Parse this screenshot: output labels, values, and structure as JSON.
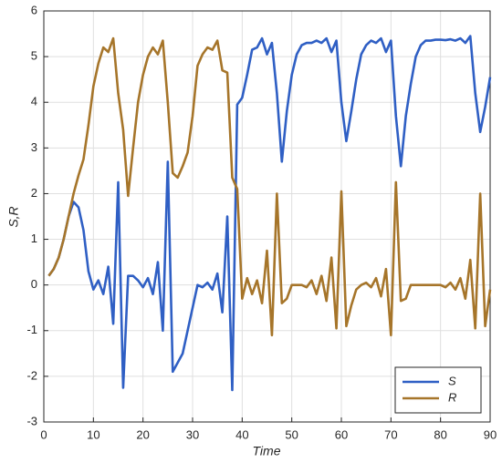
{
  "chart_data": {
    "type": "line",
    "xlabel": "Time",
    "ylabel": "S,R",
    "x": [
      1,
      2,
      3,
      4,
      5,
      6,
      7,
      8,
      9,
      10,
      11,
      12,
      13,
      14,
      15,
      16,
      17,
      18,
      19,
      20,
      21,
      22,
      23,
      24,
      25,
      26,
      27,
      28,
      29,
      30,
      31,
      32,
      33,
      34,
      35,
      36,
      37,
      38,
      39,
      40,
      41,
      42,
      43,
      44,
      45,
      46,
      47,
      48,
      49,
      50,
      51,
      52,
      53,
      54,
      55,
      56,
      57,
      58,
      59,
      60,
      61,
      62,
      63,
      64,
      65,
      66,
      67,
      68,
      69,
      70,
      71,
      72,
      73,
      74,
      75,
      76,
      77,
      78,
      79,
      80,
      81,
      82,
      83,
      84,
      85,
      86,
      87,
      88,
      89,
      90
    ],
    "series": [
      {
        "name": "S",
        "color": "#2f5fc4",
        "values": [
          0.2,
          0.35,
          0.6,
          1.0,
          1.5,
          1.82,
          1.7,
          1.2,
          0.3,
          -0.1,
          0.1,
          -0.2,
          0.4,
          -0.85,
          2.25,
          -2.25,
          0.2,
          0.2,
          0.1,
          -0.05,
          0.15,
          -0.2,
          0.5,
          -1.0,
          2.7,
          -1.9,
          -1.7,
          -1.5,
          -1.0,
          -0.5,
          0.0,
          -0.05,
          0.05,
          -0.1,
          0.25,
          -0.6,
          1.5,
          -2.3,
          3.95,
          4.1,
          4.6,
          5.15,
          5.2,
          5.4,
          5.05,
          5.3,
          4.2,
          2.7,
          3.8,
          4.6,
          5.05,
          5.25,
          5.3,
          5.3,
          5.35,
          5.3,
          5.4,
          5.1,
          5.35,
          4.0,
          3.15,
          3.8,
          4.5,
          5.05,
          5.25,
          5.35,
          5.3,
          5.4,
          5.1,
          5.35,
          3.7,
          2.6,
          3.7,
          4.4,
          5.0,
          5.25,
          5.35,
          5.35,
          5.37,
          5.37,
          5.36,
          5.38,
          5.35,
          5.4,
          5.3,
          5.45,
          4.2,
          3.35,
          3.9,
          4.55
        ]
      },
      {
        "name": "R",
        "color": "#a6752a",
        "values": [
          0.2,
          0.35,
          0.6,
          1.0,
          1.5,
          2.0,
          2.4,
          2.75,
          3.5,
          4.35,
          4.85,
          5.2,
          5.1,
          5.4,
          4.2,
          3.4,
          1.95,
          3.0,
          4.0,
          4.6,
          5.0,
          5.2,
          5.05,
          5.35,
          4.0,
          2.45,
          2.35,
          2.6,
          2.9,
          3.7,
          4.8,
          5.05,
          5.2,
          5.15,
          5.35,
          4.7,
          4.65,
          2.35,
          2.1,
          -0.3,
          0.15,
          -0.2,
          0.1,
          -0.4,
          0.75,
          -1.1,
          2.0,
          -0.4,
          -0.3,
          0.0,
          0.0,
          0.0,
          -0.05,
          0.1,
          -0.2,
          0.2,
          -0.35,
          0.6,
          -0.95,
          2.05,
          -0.9,
          -0.45,
          -0.1,
          0.0,
          0.05,
          -0.05,
          0.15,
          -0.25,
          0.35,
          -1.1,
          2.25,
          -0.35,
          -0.3,
          0.0,
          0.0,
          0.0,
          0.0,
          0.0,
          0.0,
          0.0,
          -0.05,
          0.05,
          -0.1,
          0.15,
          -0.3,
          0.55,
          -0.95,
          2.0,
          -0.9,
          -0.1
        ]
      }
    ],
    "xlim": [
      0,
      90
    ],
    "xticks": [
      0,
      10,
      20,
      30,
      40,
      50,
      60,
      70,
      80,
      90
    ],
    "ylim": [
      -3,
      6
    ],
    "yticks": [
      -3,
      -2,
      -1,
      0,
      1,
      2,
      3,
      4,
      5,
      6
    ],
    "grid": true,
    "legend": "southeast"
  }
}
